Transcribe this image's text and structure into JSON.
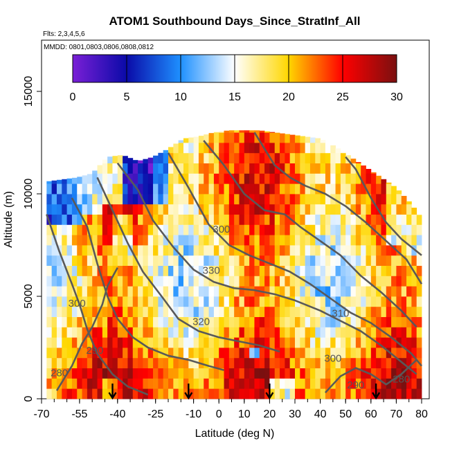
{
  "chart_data": {
    "type": "heatmap",
    "title": "ATOM1 Southbound Days_Since_StratInf_All",
    "flights_note": "Flts: 2,3,4,5,6",
    "mmdd_note": "MMDD: 0801,0803,0806,0808,0812",
    "xlabel": "Latitude (deg N)",
    "ylabel": "Altitude (m)",
    "xlim": [
      -70,
      83
    ],
    "ylim": [
      0,
      17500
    ],
    "x_ticks": [
      -70,
      -55,
      -40,
      -25,
      -10,
      0,
      10,
      20,
      30,
      40,
      50,
      60,
      70,
      80
    ],
    "x_tick_labels": [
      "-70",
      "-55",
      "-40",
      "-25",
      "-10",
      "0",
      "10",
      "20",
      "30",
      "40",
      "50",
      "60",
      "70",
      "80"
    ],
    "y_ticks": [
      0,
      5000,
      10000,
      15000
    ],
    "y_tick_labels": [
      "0",
      "5000",
      "10000",
      "15000"
    ],
    "colorbar": {
      "min": 0,
      "max": 30,
      "ticks": [
        0,
        5,
        10,
        15,
        20,
        25,
        30
      ],
      "tick_labels": [
        "0",
        "5",
        "10",
        "15",
        "20",
        "25",
        "30"
      ],
      "colors": [
        "#7a1fd6",
        "#0a0aa8",
        "#1e90ff",
        "#ffffff",
        "#ffd700",
        "#ff0000",
        "#7a1010"
      ]
    },
    "curtain_top_profile": {
      "lat": [
        -68,
        -62,
        -56,
        -50,
        -44,
        -38,
        -32,
        -26,
        -20,
        -14,
        -8,
        -2,
        4,
        10,
        16,
        22,
        28,
        34,
        40,
        46,
        52,
        58,
        64,
        70,
        76,
        80
      ],
      "alt": [
        10600,
        10700,
        10800,
        11000,
        11800,
        11900,
        11600,
        11800,
        12200,
        12700,
        12800,
        13000,
        13100,
        13100,
        13100,
        13000,
        12900,
        12800,
        12700,
        12300,
        11800,
        11300,
        10800,
        10300,
        9500,
        8800
      ]
    },
    "contour_label_values": [
      "300",
      "330",
      "320",
      "310",
      "300",
      "290",
      "280",
      "290",
      "280",
      "300"
    ],
    "contour_label_positions": [
      {
        "lat": -56,
        "alt": 4500
      },
      {
        "lat": -3,
        "alt": 6100
      },
      {
        "lat": -7,
        "alt": 3600
      },
      {
        "lat": 48,
        "alt": 4000
      },
      {
        "lat": 45,
        "alt": 1800
      },
      {
        "lat": -49,
        "alt": 2200
      },
      {
        "lat": -63,
        "alt": 1100
      },
      {
        "lat": 54,
        "alt": 500
      },
      {
        "lat": 72,
        "alt": 800
      },
      {
        "lat": 1,
        "alt": 8100
      }
    ],
    "flight_arrow_lats": [
      -42,
      -12,
      20,
      62
    ]
  }
}
